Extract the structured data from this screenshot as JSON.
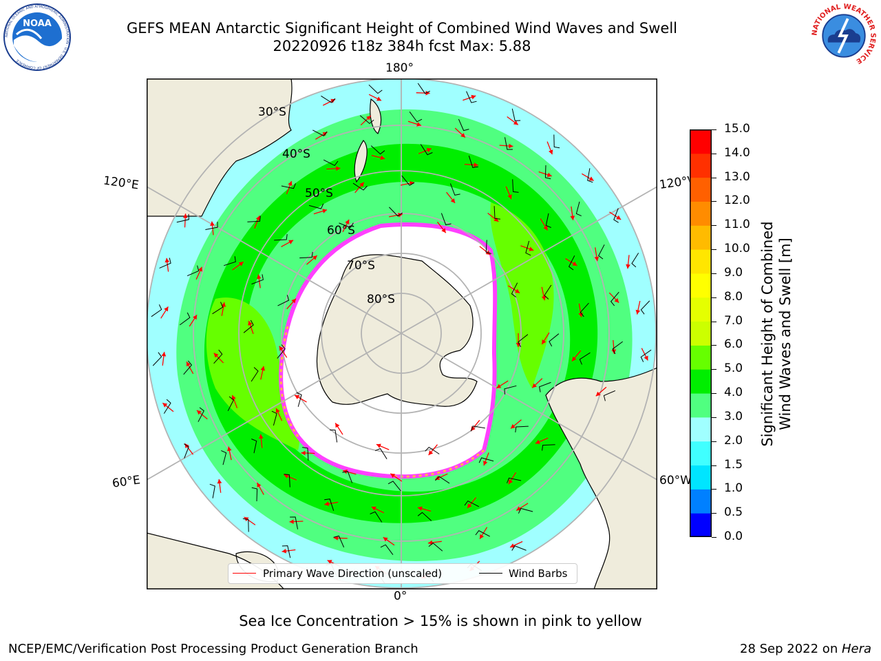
{
  "header": {
    "title_line1": "GEFS MEAN Antarctic Significant Height of Combined Wind Waves and Swell",
    "title_line2": "20220926 t18z 384h fcst   Max: 5.88"
  },
  "logos": {
    "left_name": "NOAA",
    "left_ring": "NATIONAL OCEANIC AND ATMOSPHERIC ADMINISTRATION · U.S. DEPARTMENT OF COMMERCE",
    "right_ring": "NATIONAL WEATHER SERVICE"
  },
  "map": {
    "longitude_labels": {
      "top": "180°",
      "bottom": "0°",
      "upper_left": "120°E",
      "upper_right": "120°W",
      "lower_left": "60°E",
      "lower_right": "60°W"
    },
    "latitude_labels": [
      "30°S",
      "40°S",
      "50°S",
      "60°S",
      "70°S",
      "80°S"
    ],
    "colors": {
      "land": "#efecdc",
      "ocean_blank": "#ffffff",
      "grid": "#b3b3b3",
      "wave_arrow": "#ff0000",
      "wind_barb": "#000000"
    }
  },
  "chart_data": {
    "type": "heatmap",
    "title": "GEFS MEAN Antarctic Significant Height of Combined Wind Waves and Swell",
    "max_value": 5.88,
    "colorbar": {
      "label": "Significant Height of Combined Wind Waves and Swell [m]",
      "ticks": [
        "0.0",
        "0.5",
        "1.0",
        "1.5",
        "2.0",
        "3.0",
        "4.0",
        "5.0",
        "6.0",
        "7.0",
        "8.0",
        "9.0",
        "10.0",
        "11.0",
        "12.0",
        "13.0",
        "14.0",
        "15.0"
      ],
      "colors": [
        "#0000ff",
        "#0080ff",
        "#00e5ff",
        "#40ffff",
        "#a0ffff",
        "#50ff80",
        "#00ee00",
        "#66ff00",
        "#ccff00",
        "#e5ff00",
        "#ffff00",
        "#ffe600",
        "#ffbb00",
        "#ff8c00",
        "#ff6000",
        "#ff3000",
        "#ff0000"
      ]
    }
  },
  "legend": {
    "wave_label": "Primary Wave Direction (unscaled)",
    "barb_label": "Wind Barbs"
  },
  "note": "Sea Ice Concentration > 15% is shown in pink to yellow",
  "footer": {
    "left": "NCEP/EMC/Verification Post Processing Product Generation Branch",
    "right_date": "28 Sep 2022 on ",
    "right_host": "Hera"
  }
}
